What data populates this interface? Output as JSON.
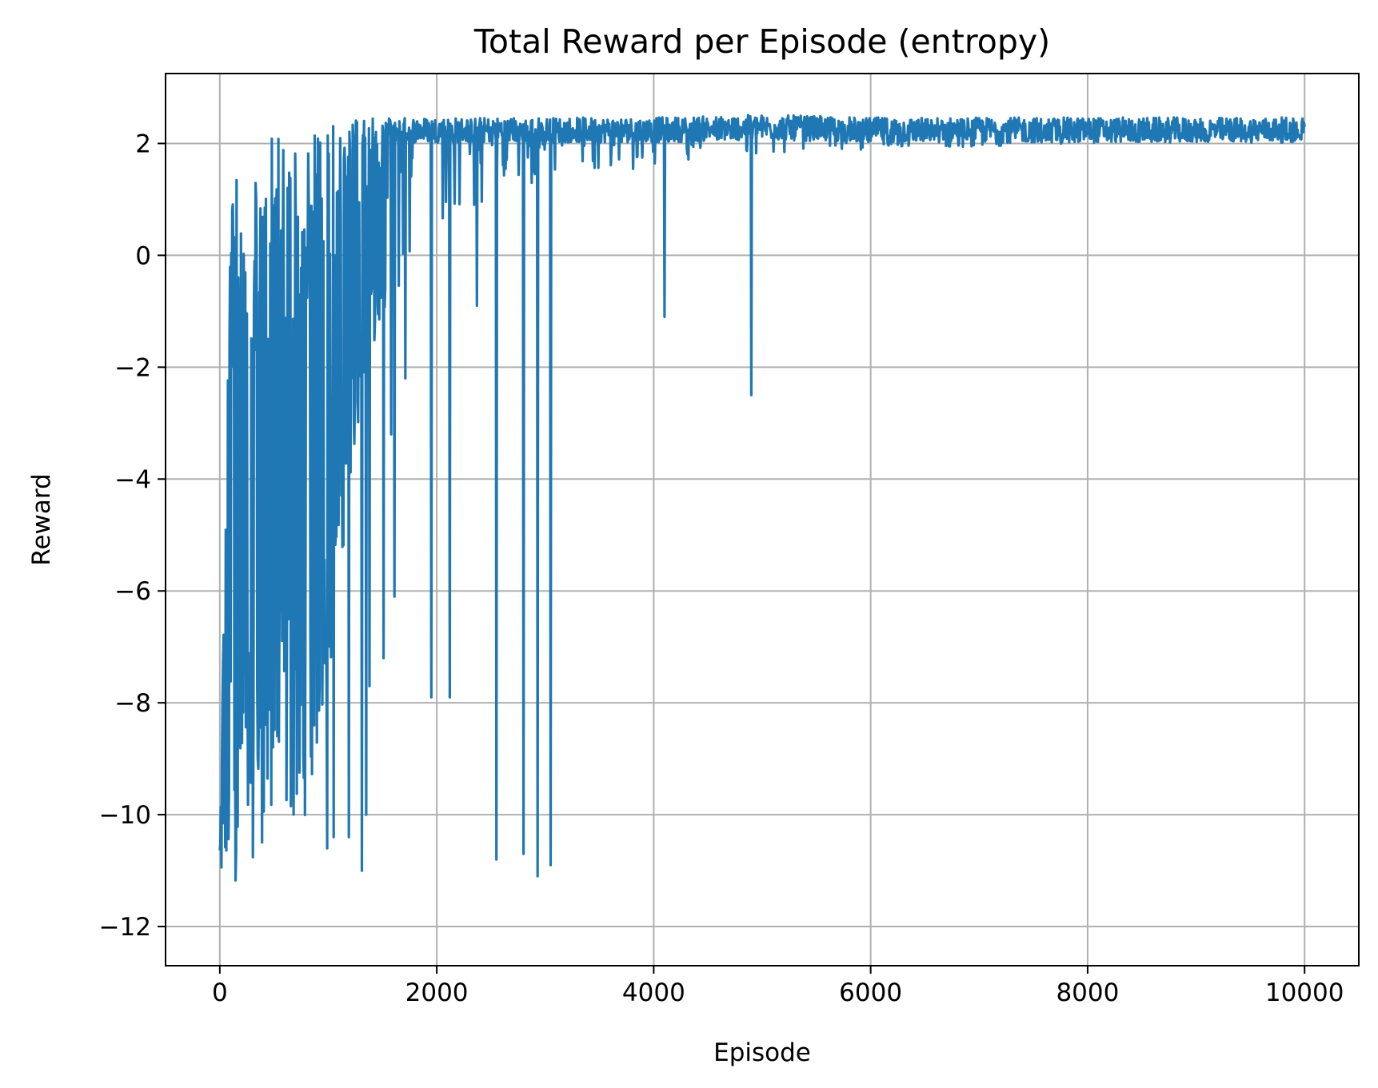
{
  "chart_data": {
    "type": "line",
    "title": "Total Reward per Episode (entropy)",
    "xlabel": "Episode",
    "ylabel": "Reward",
    "xlim": [
      -500,
      10500
    ],
    "ylim": [
      -12.7,
      3.25
    ],
    "xticks": [
      0,
      2000,
      4000,
      6000,
      8000,
      10000
    ],
    "xtick_labels": [
      "0",
      "2000",
      "4000",
      "6000",
      "8000",
      "10000"
    ],
    "yticks": [
      -12,
      -10,
      -8,
      -6,
      -4,
      -2,
      0,
      2
    ],
    "ytick_labels": [
      "−12",
      "−10",
      "−8",
      "−6",
      "−4",
      "−2",
      "0",
      "2"
    ],
    "grid": true,
    "color": "#1f77b4",
    "series": [
      {
        "x_start": 0,
        "x_end": 10000,
        "num_points": 10000,
        "envelope_x": [
          0,
          100,
          200,
          300,
          400,
          600,
          800,
          1000,
          1200,
          1500,
          2000,
          2500,
          3000,
          4000,
          5000,
          6000,
          8000,
          10000
        ],
        "envelope_upper": [
          -10.5,
          1.2,
          1.5,
          1.6,
          2.2,
          2.2,
          2.3,
          2.4,
          2.4,
          2.5,
          2.5,
          2.5,
          2.5,
          2.5,
          2.55,
          2.5,
          2.5,
          2.5
        ],
        "envelope_lower": [
          -12.0,
          -11.5,
          -11.0,
          -10.8,
          -10.5,
          -10.3,
          -10.0,
          -8.0,
          -4.0,
          -1.0,
          0.0,
          1.0,
          1.3,
          1.6,
          1.8,
          1.9,
          2.0,
          2.05
        ],
        "outliers": [
          {
            "x": 990,
            "y": -10.6
          },
          {
            "x": 1050,
            "y": -10.4
          },
          {
            "x": 1190,
            "y": -10.4
          },
          {
            "x": 1310,
            "y": -11.0
          },
          {
            "x": 1350,
            "y": -10.0
          },
          {
            "x": 1380,
            "y": -7.7
          },
          {
            "x": 1510,
            "y": -7.2
          },
          {
            "x": 1580,
            "y": -3.2
          },
          {
            "x": 1610,
            "y": -6.1
          },
          {
            "x": 1710,
            "y": -2.2
          },
          {
            "x": 1950,
            "y": -7.9
          },
          {
            "x": 2120,
            "y": -7.9
          },
          {
            "x": 2370,
            "y": -0.9
          },
          {
            "x": 2550,
            "y": -10.8
          },
          {
            "x": 2800,
            "y": -10.7
          },
          {
            "x": 2930,
            "y": -11.1
          },
          {
            "x": 3050,
            "y": -10.9
          },
          {
            "x": 4100,
            "y": -1.1
          },
          {
            "x": 4900,
            "y": -2.5
          }
        ]
      }
    ]
  }
}
